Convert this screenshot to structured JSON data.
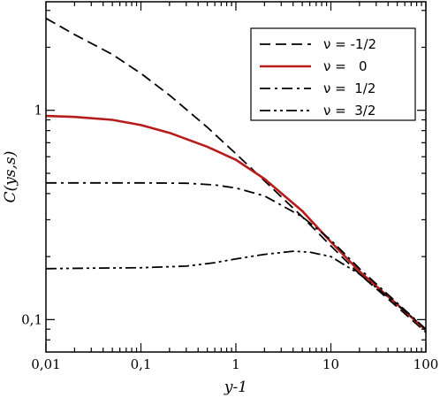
{
  "chart_data": {
    "type": "line",
    "title": "",
    "xlabel": "y-1",
    "ylabel": "C(ys,s)",
    "xscale": "log",
    "yscale": "log",
    "xlim": [
      0.01,
      100
    ],
    "ylim": [
      0.07,
      3.3
    ],
    "grid": false,
    "legend_position": "top-right",
    "x_ticks": [
      {
        "value": 0.01,
        "label": "0,01"
      },
      {
        "value": 0.1,
        "label": "0,1"
      },
      {
        "value": 1,
        "label": "1"
      },
      {
        "value": 10,
        "label": "10"
      },
      {
        "value": 100,
        "label": "100"
      }
    ],
    "y_ticks": [
      {
        "value": 0.1,
        "label": "0,1"
      },
      {
        "value": 1,
        "label": "1"
      }
    ],
    "series": [
      {
        "name": "ν = -1/2",
        "color": "#000000",
        "style": "dash",
        "x": [
          0.01,
          0.02,
          0.05,
          0.1,
          0.2,
          0.5,
          1,
          2,
          5,
          10,
          20,
          50,
          100
        ],
        "y": [
          2.75,
          2.3,
          1.85,
          1.5,
          1.18,
          0.83,
          0.62,
          0.46,
          0.31,
          0.225,
          0.165,
          0.115,
          0.087
        ]
      },
      {
        "name": "ν =   0",
        "color": "#b71c1c",
        "style": "solid",
        "x": [
          0.01,
          0.02,
          0.05,
          0.1,
          0.2,
          0.5,
          1,
          2,
          5,
          10,
          20,
          50,
          100
        ],
        "y": [
          0.94,
          0.93,
          0.9,
          0.85,
          0.78,
          0.67,
          0.58,
          0.47,
          0.33,
          0.235,
          0.17,
          0.118,
          0.089
        ]
      },
      {
        "name": "ν =  1/2",
        "color": "#000000",
        "style": "dashdot",
        "x": [
          0.01,
          0.03,
          0.1,
          0.3,
          0.6,
          1,
          2,
          5,
          10,
          20,
          50,
          100
        ],
        "y": [
          0.45,
          0.45,
          0.45,
          0.448,
          0.44,
          0.425,
          0.39,
          0.31,
          0.24,
          0.175,
          0.12,
          0.09
        ]
      },
      {
        "name": "ν =  3/2",
        "color": "#000000",
        "style": "dashdotdot",
        "x": [
          0.01,
          0.03,
          0.1,
          0.3,
          0.6,
          1,
          2,
          4,
          6,
          10,
          20,
          50,
          100
        ],
        "y": [
          0.175,
          0.176,
          0.177,
          0.18,
          0.187,
          0.195,
          0.205,
          0.212,
          0.21,
          0.2,
          0.165,
          0.118,
          0.09
        ]
      }
    ]
  }
}
